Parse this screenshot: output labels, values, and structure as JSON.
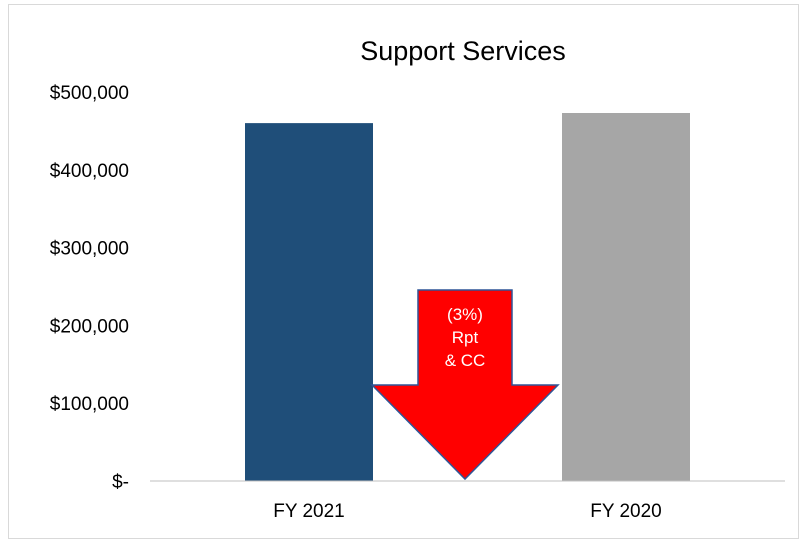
{
  "chart_data": {
    "type": "bar",
    "title": "Support Services",
    "categories": [
      "FY 2021",
      "FY 2020"
    ],
    "values": [
      460000,
      473000
    ],
    "colors": [
      "#1f4e79",
      "#a6a6a6"
    ],
    "ylim": [
      0,
      500000
    ],
    "y_ticks": [
      {
        "value": 0,
        "label": "$-"
      },
      {
        "value": 100000,
        "label": "$100,000"
      },
      {
        "value": 200000,
        "label": "$200,000"
      },
      {
        "value": 300000,
        "label": "$300,000"
      },
      {
        "value": 400000,
        "label": "$400,000"
      },
      {
        "value": 500000,
        "label": "$500,000"
      }
    ],
    "grid": false,
    "annotation": {
      "shape": "down-arrow",
      "color": "#ff0000",
      "lines": [
        "(3%)",
        "Rpt",
        "& CC"
      ]
    }
  }
}
